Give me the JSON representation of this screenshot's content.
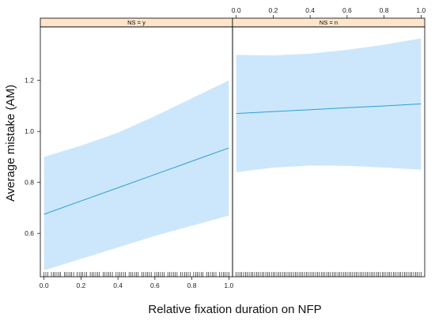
{
  "chart_data": {
    "type": "line",
    "xlabel": "Relative fixation duration on NFP",
    "ylabel": "Average mistake (AM)",
    "xlim": [
      -0.02,
      1.02
    ],
    "ylim": [
      0.43,
      1.41
    ],
    "x_ticks": [
      "0.0",
      "0.2",
      "0.4",
      "0.6",
      "0.8",
      "1.0"
    ],
    "y_ticks": [
      "0.6",
      "0.8",
      "1.0",
      "1.2"
    ],
    "colors": {
      "line": "#2a9fd6",
      "band": "#cce7fb",
      "strip": "#ffe5cc",
      "frame": "#000000"
    },
    "panels": [
      {
        "strip": "NS = y",
        "x": [
          0.0,
          0.2,
          0.4,
          0.6,
          0.8,
          1.0
        ],
        "fit": [
          0.675,
          0.727,
          0.779,
          0.831,
          0.883,
          0.935
        ],
        "lower": [
          0.455,
          0.5,
          0.545,
          0.59,
          0.63,
          0.67
        ],
        "upper": [
          0.9,
          0.944,
          0.995,
          1.06,
          1.13,
          1.2
        ],
        "rug": true
      },
      {
        "strip": "NS = n",
        "x": [
          0.0,
          0.2,
          0.4,
          0.6,
          0.8,
          1.0
        ],
        "fit": [
          1.07,
          1.078,
          1.085,
          1.093,
          1.1,
          1.108
        ],
        "lower": [
          0.84,
          0.858,
          0.866,
          0.865,
          0.858,
          0.85
        ],
        "upper": [
          1.3,
          1.298,
          1.305,
          1.32,
          1.34,
          1.365
        ],
        "rug": true
      }
    ]
  }
}
